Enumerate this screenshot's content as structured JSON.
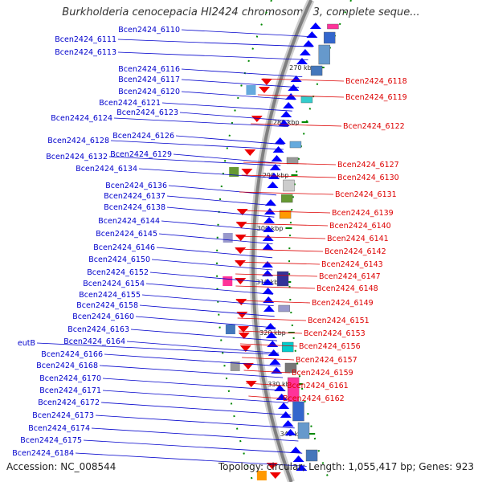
{
  "title": "Burkholderia cenocepacia HI2424 chromosome 3, complete seque...",
  "footer": {
    "accession": "Accession: NC_008544",
    "summary": "Topology: circular; Length: 1,055,417 bp; Genes: 923"
  },
  "colors": {
    "forward_label": "#0000cc",
    "reverse_label": "#dd0000",
    "backbone": "#808080",
    "tick": "#008800"
  },
  "ticks": [
    "270 kbp",
    "280 kbp",
    "290 kbp",
    "300 kbp",
    "310 kbp",
    "320 kbp",
    "330 kbp",
    "340 kbp"
  ],
  "forward_labels": [
    "Bcen2424_6110",
    "Bcen2424_6111",
    "Bcen2424_6113",
    "Bcen2424_6116",
    "Bcen2424_6117",
    "Bcen2424_6120",
    "Bcen2424_6121",
    "Bcen2424_6123",
    "Bcen2424_6124",
    "Bcen2424_6126",
    "Bcen2424_6128",
    "Bcen2424_6132",
    "Bcen2424_6129",
    "Bcen2424_6134",
    "Bcen2424_6136",
    "Bcen2424_6137",
    "Bcen2424_6138",
    "Bcen2424_6144",
    "Bcen2424_6145",
    "Bcen2424_6146",
    "Bcen2424_6150",
    "Bcen2424_6152",
    "Bcen2424_6154",
    "Bcen2424_6155",
    "Bcen2424_6158",
    "Bcen2424_6160",
    "Bcen2424_6163",
    "eutB",
    "Bcen2424_6164",
    "Bcen2424_6166",
    "Bcen2424_6168",
    "Bcen2424_6170",
    "Bcen2424_6171",
    "Bcen2424_6172",
    "Bcen2424_6173",
    "Bcen2424_6174",
    "Bcen2424_6175",
    "Bcen2424_6184"
  ],
  "reverse_labels": [
    "Bcen2424_6118",
    "Bcen2424_6119",
    "Bcen2424_6122",
    "Bcen2424_6127",
    "Bcen2424_6130",
    "Bcen2424_6131",
    "Bcen2424_6139",
    "Bcen2424_6140",
    "Bcen2424_6141",
    "Bcen2424_6142",
    "Bcen2424_6143",
    "Bcen2424_6147",
    "Bcen2424_6148",
    "Bcen2424_6149",
    "Bcen2424_6151",
    "Bcen2424_6153",
    "Bcen2424_6156",
    "Bcen2424_6157",
    "Bcen2424_6159",
    "Bcen2424_6161",
    "Bcen2424_6162"
  ]
}
